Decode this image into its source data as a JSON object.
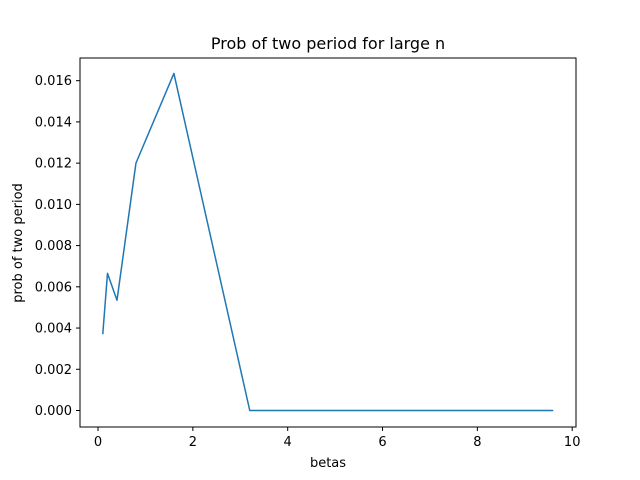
{
  "chart_data": {
    "type": "line",
    "title": "Prob of two period for large n",
    "xlabel": "betas",
    "ylabel": "prob of two period",
    "xlim": [
      -0.38,
      10.08
    ],
    "ylim": [
      -0.0008,
      0.0171
    ],
    "xticks": [
      0,
      2,
      4,
      6,
      8,
      10
    ],
    "xtick_labels": [
      "0",
      "2",
      "4",
      "6",
      "8",
      "10"
    ],
    "yticks": [
      0,
      0.002,
      0.004,
      0.006,
      0.008,
      0.01,
      0.012,
      0.014,
      0.016
    ],
    "ytick_labels": [
      "0.000",
      "0.002",
      "0.004",
      "0.006",
      "0.008",
      "0.010",
      "0.012",
      "0.014",
      "0.016"
    ],
    "grid": false,
    "series": [
      {
        "color": "#1f77b4",
        "x": [
          0.1,
          0.2,
          0.4,
          0.8,
          1.6,
          3.2,
          6.4,
          9.6
        ],
        "y": [
          0.0037,
          0.00665,
          0.00535,
          0.012,
          0.01635,
          0.0,
          0.0,
          0.0
        ]
      }
    ]
  }
}
